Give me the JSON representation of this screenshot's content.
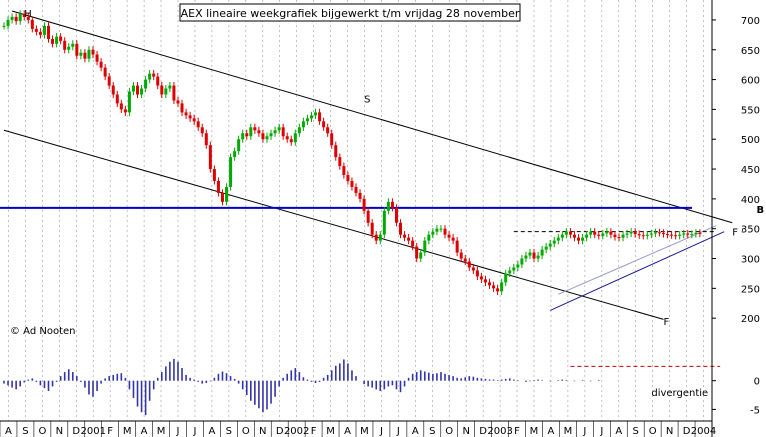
{
  "chart_data": {
    "type": "candlestick",
    "title": "AEX lineaire weekgrafiek bijgewerkt t/m vrijdag 28 november",
    "copyright": "© Ad Nooten",
    "price_axis": {
      "ylim": [
        150,
        720
      ],
      "ticks": [
        "700",
        "650",
        "600",
        "550",
        "500",
        "450",
        "400",
        "350",
        "300",
        "250",
        "200"
      ],
      "tick_values": [
        700,
        650,
        600,
        550,
        500,
        450,
        400,
        350,
        300,
        250,
        200
      ]
    },
    "osc_axis": {
      "ylim": [
        -6.5,
        5
      ],
      "ticks": [
        "0",
        "-5"
      ],
      "tick_values": [
        0,
        -5
      ]
    },
    "x_labels": [
      "A",
      "S",
      "O",
      "N",
      "D",
      "2001",
      "F",
      "M",
      "A",
      "M",
      "J",
      "J",
      "A",
      "S",
      "O",
      "N",
      "D",
      "2002",
      "F",
      "M",
      "A",
      "M",
      "J",
      "J",
      "A",
      "S",
      "O",
      "N",
      "D",
      "2003",
      "F",
      "M",
      "A",
      "M",
      "J",
      "J",
      "A",
      "S",
      "O",
      "N",
      "D",
      "2004"
    ],
    "x_index": {
      "start": 0,
      "end": 174
    },
    "annotations": [
      {
        "text": "H",
        "x": 5,
        "y": 712
      },
      {
        "text": "S",
        "x": 89,
        "y": 568
      },
      {
        "text": "F",
        "x": 163,
        "y": 195
      },
      {
        "text": "F '",
        "x": 180,
        "y": 345
      },
      {
        "text": "B",
        "x": 186,
        "y": 383
      },
      {
        "text": "divergentie",
        "x": 160,
        "osc": -2
      }
    ],
    "horizontal_line": {
      "value": 385,
      "label": "B",
      "color": "#0000cc"
    },
    "resistance_line": {
      "value": 345,
      "from": 126,
      "to": 176
    },
    "channel_upper": [
      [
        2,
        715
      ],
      [
        180,
        360
      ]
    ],
    "channel_lower": [
      [
        0,
        515
      ],
      [
        163,
        198
      ]
    ],
    "support_line": [
      [
        135,
        213
      ],
      [
        178,
        345
      ]
    ],
    "support_parallel": [
      [
        137,
        240
      ],
      [
        176,
        355
      ]
    ],
    "divergence_line": {
      "value": 2.5,
      "from": 140,
      "to": 177
    },
    "closes": [
      690,
      700,
      705,
      698,
      710,
      705,
      700,
      685,
      680,
      675,
      690,
      668,
      660,
      672,
      665,
      650,
      655,
      660,
      640,
      645,
      635,
      650,
      642,
      630,
      620,
      605,
      590,
      575,
      560,
      550,
      545,
      580,
      590,
      575,
      585,
      600,
      610,
      605,
      590,
      575,
      585,
      590,
      565,
      560,
      545,
      540,
      535,
      530,
      520,
      510,
      490,
      450,
      430,
      410,
      395,
      420,
      470,
      480,
      500,
      510,
      505,
      520,
      515,
      510,
      500,
      505,
      510,
      515,
      520,
      505,
      500,
      495,
      510,
      520,
      530,
      535,
      540,
      545,
      530,
      520,
      510,
      490,
      470,
      455,
      440,
      430,
      420,
      410,
      400,
      380,
      360,
      340,
      330,
      340,
      380,
      395,
      385,
      360,
      340,
      335,
      330,
      320,
      300,
      310,
      330,
      340,
      345,
      350,
      350,
      340,
      335,
      330,
      310,
      300,
      295,
      285,
      280,
      270,
      265,
      260,
      255,
      250,
      245,
      260,
      275,
      280,
      285,
      290,
      300,
      305,
      310,
      300,
      305,
      315,
      320,
      325,
      330,
      335,
      340,
      345,
      340,
      335,
      330,
      335,
      340,
      345,
      340,
      338,
      342,
      345,
      340,
      336,
      335,
      340,
      342,
      345,
      341,
      339,
      338,
      340,
      342,
      344,
      343,
      341,
      340,
      339,
      338,
      340,
      342,
      340,
      341,
      343,
      342
    ],
    "oscillator": [
      -0.5,
      -0.8,
      -1.2,
      -1.5,
      -1.0,
      -0.3,
      0.2,
      0.4,
      -0.2,
      -0.8,
      -1.3,
      -1.8,
      -1.0,
      -0.2,
      0.8,
      1.5,
      2.0,
      1.5,
      0.8,
      -0.2,
      -1.2,
      -2.4,
      -2.8,
      -1.8,
      -0.5,
      0.4,
      0.8,
      1.0,
      1.2,
      1.3,
      0.5,
      -1.5,
      -3.0,
      -4.5,
      -5.5,
      -6.0,
      -3.5,
      -1.5,
      0.5,
      1.5,
      2.5,
      3.3,
      3.8,
      3.3,
      2.2,
      1.0,
      0.5,
      0.2,
      -0.2,
      -0.5,
      -0.4,
      -0.1,
      0.5,
      1.2,
      1.6,
      1.3,
      0.8,
      0.3,
      -0.5,
      -1.5,
      -2.5,
      -3.5,
      -4.2,
      -4.8,
      -5.5,
      -5.0,
      -4.0,
      -2.8,
      -1.0,
      0.5,
      1.2,
      1.8,
      2.2,
      1.5,
      0.6,
      0.2,
      -0.2,
      -0.4,
      -0.2,
      0.5,
      1.0,
      1.8,
      2.6,
      3.0,
      3.7,
      3.0,
      1.8,
      0.8,
      0.0,
      -0.6,
      -1.0,
      -1.2,
      -1.5,
      -1.8,
      -1.5,
      -1.0,
      -0.8,
      -1.5,
      -2.0,
      -1.0,
      0.5,
      1.2,
      1.5,
      1.8,
      1.6,
      1.4,
      1.2,
      1.3,
      1.5,
      1.2,
      1.0,
      0.8,
      0.5,
      0.4,
      0.6,
      0.8,
      0.7,
      0.5,
      0.4,
      0.3,
      0.2,
      0.2,
      0.1,
      0.2,
      0.3,
      0.4,
      0.2,
      0.1,
      0.0,
      -0.2,
      -0.1,
      0.1,
      0.2,
      0.1,
      0.0,
      -0.1,
      0.0,
      0.1,
      0.2,
      0.1,
      0.0,
      -0.1,
      0.0,
      0.1,
      0.0,
      -0.1,
      0.0,
      0.1
    ]
  }
}
